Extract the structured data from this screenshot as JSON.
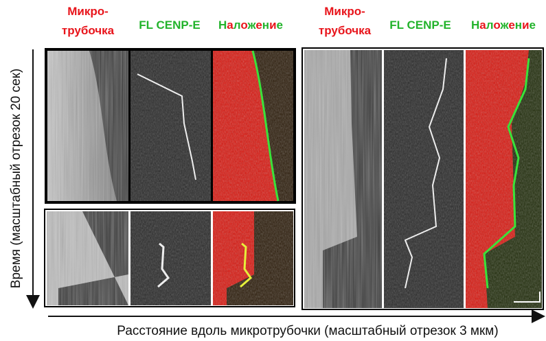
{
  "groups": [
    {
      "microtubule": [
        "Микро-",
        "трубочка"
      ],
      "cenp": "FL CENP-E",
      "overlay": "Наложение"
    },
    {
      "microtubule": [
        "Микро-",
        "трубочка"
      ],
      "cenp": "FL CENP-E",
      "overlay": "Наложение"
    }
  ],
  "y_axis_label": "Время (масштабный отрезок 20 сек)",
  "x_axis_label": "Расстояние вдоль микротрубочки (масштабный отрезок 3 мкм)"
}
